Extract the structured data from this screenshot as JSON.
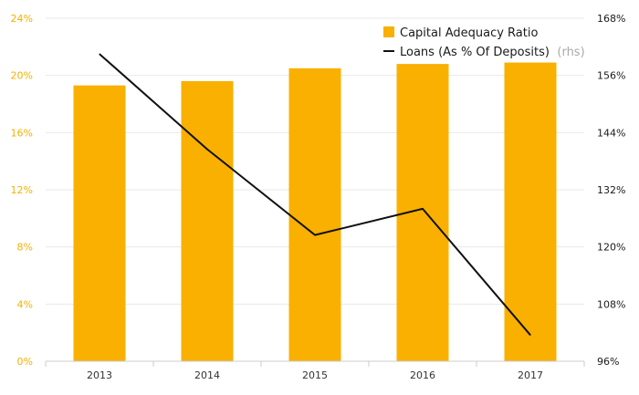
{
  "chart_data": {
    "type": "bar",
    "categories": [
      "2013",
      "2014",
      "2015",
      "2016",
      "2017"
    ],
    "series": [
      {
        "name": "Capital Adequacy Ratio",
        "kind": "bar",
        "axis": "left",
        "color": "#f9b000",
        "values": [
          19.3,
          19.6,
          20.5,
          20.8,
          20.9
        ]
      },
      {
        "name": "Loans (As % Of Deposits)",
        "name_suffix": "(rhs)",
        "kind": "line",
        "axis": "right",
        "color": "#111111",
        "values": [
          160.5,
          140.5,
          122.5,
          128,
          101.5
        ]
      }
    ],
    "y_left": {
      "ylim": [
        0,
        24
      ],
      "ticks": [
        0,
        4,
        8,
        12,
        16,
        20,
        24
      ],
      "tick_labels": [
        "0%",
        "4%",
        "8%",
        "12%",
        "16%",
        "20%",
        "24%"
      ],
      "color": "#f5b000"
    },
    "y_right": {
      "ylim": [
        96,
        168
      ],
      "ticks": [
        96,
        108,
        120,
        132,
        144,
        156,
        168
      ],
      "tick_labels": [
        "96%",
        "108%",
        "120%",
        "132%",
        "144%",
        "156%",
        "168%"
      ]
    },
    "grid": true,
    "legend": "top-right"
  }
}
